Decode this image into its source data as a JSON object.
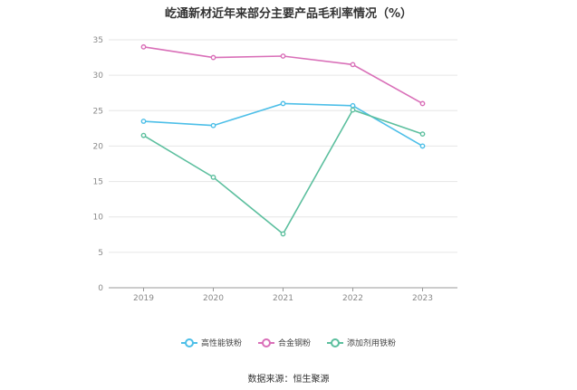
{
  "chart_data": {
    "type": "line",
    "title": "屹通新材近年来部分主要产品毛利率情况（%）",
    "categories": [
      "2019",
      "2020",
      "2021",
      "2022",
      "2023"
    ],
    "series": [
      {
        "name": "高性能铁粉",
        "color": "#4dbfe8",
        "values": [
          23.5,
          22.9,
          26.0,
          25.7,
          20.0
        ]
      },
      {
        "name": "合金钢粉",
        "color": "#d96fb8",
        "values": [
          34.0,
          32.5,
          32.7,
          31.5,
          26.0
        ]
      },
      {
        "name": "添加剂用铁粉",
        "color": "#5cbf9e",
        "values": [
          21.5,
          15.6,
          7.6,
          25.1,
          21.7
        ]
      }
    ],
    "ylim": [
      0,
      35
    ],
    "yticks": [
      0,
      5,
      10,
      15,
      20,
      25,
      30,
      35
    ],
    "grid": true,
    "legend_position": "bottom"
  },
  "source": "数据来源：恒生聚源"
}
